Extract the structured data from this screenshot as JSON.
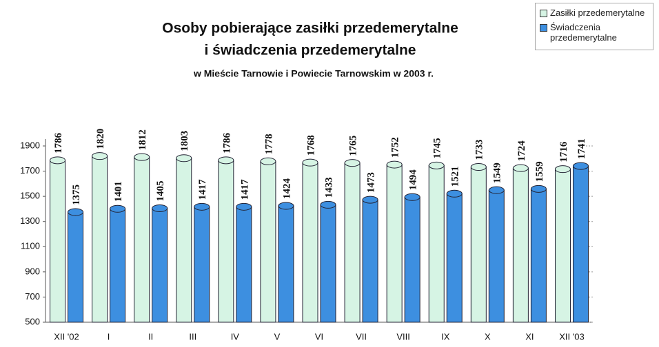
{
  "chart_data": {
    "type": "bar",
    "title": [
      "Osoby pobierające zasiłki przedemerytalne",
      "i świadczenia przedemerytalne"
    ],
    "subtitle": "w Mieście Tarnowie i Powiecie Tarnowskim w 2003 r.",
    "categories": [
      "XII '02",
      "I",
      "II",
      "III",
      "IV",
      "V",
      "VI",
      "VII",
      "VIII",
      "IX",
      "X",
      "XI",
      "XII '03"
    ],
    "series": [
      {
        "name": "Zasiłki przedemerytalne",
        "color": "#d6f4e4",
        "values": [
          1786,
          1820,
          1812,
          1803,
          1786,
          1778,
          1768,
          1765,
          1752,
          1745,
          1733,
          1724,
          1716
        ]
      },
      {
        "name": "Świadczenia przedemerytalne",
        "color": "#3d8fe0",
        "values": [
          1375,
          1401,
          1405,
          1417,
          1417,
          1424,
          1433,
          1473,
          1494,
          1521,
          1549,
          1559,
          1741
        ]
      }
    ],
    "ylim": [
      500,
      1900
    ],
    "yticks": [
      500,
      700,
      900,
      1100,
      1300,
      1500,
      1700,
      1900
    ],
    "grid": true,
    "legend": "top-right"
  }
}
